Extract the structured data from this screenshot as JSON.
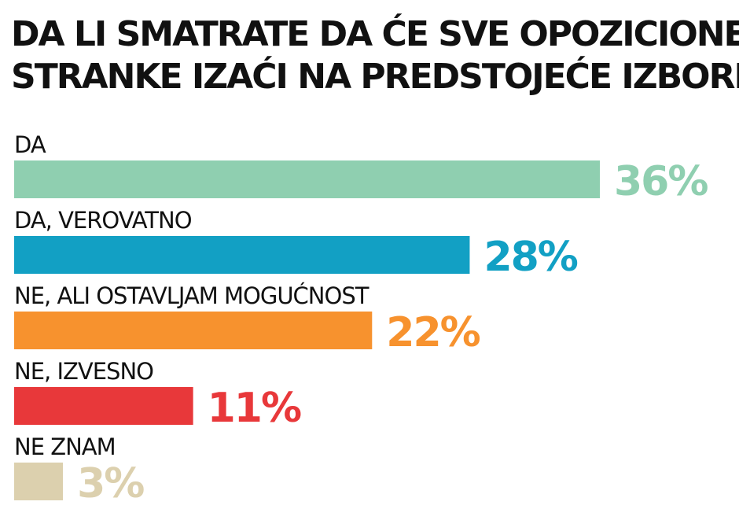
{
  "chart_data": {
    "type": "bar",
    "orientation": "horizontal",
    "title": [
      "DA LI SMATRATE DA ĆE SVE OPOZICIONE",
      "STRANKE IZAĆI NA PREDSTOJEĆE IZBORE?"
    ],
    "categories": [
      "DA",
      "DA, VEROVATNO",
      "NE, ALI OSTAVLJAM MOGUĆNOST",
      "NE, IZVESNO",
      "NE ZNAM"
    ],
    "values": [
      36,
      28,
      22,
      11,
      3
    ],
    "value_labels": [
      "36%",
      "28%",
      "22%",
      "11%",
      "3%"
    ],
    "colors": [
      "#8fcfb0",
      "#12a0c4",
      "#f7922e",
      "#e8383a",
      "#dcd0ae"
    ],
    "unit": "%",
    "xlim": [
      0,
      36
    ],
    "grid": false,
    "legend": "none"
  }
}
